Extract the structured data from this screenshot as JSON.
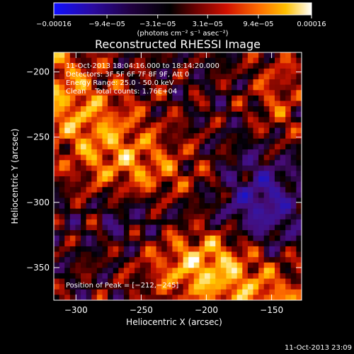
{
  "chart_data": {
    "type": "heatmap",
    "title": "Reconstructed RHESSI Image",
    "xlabel": "Heliocentric X (arcsec)",
    "ylabel": "Heliocentric Y (arcsec)",
    "xlim": [
      -317,
      -127
    ],
    "ylim": [
      -375,
      -185
    ],
    "x_ticks": [
      -300,
      -250,
      -200,
      -150
    ],
    "x_tick_labels": [
      "−300",
      "−250",
      "−200",
      "−150"
    ],
    "y_ticks": [
      -350,
      -300,
      -250,
      -200
    ],
    "y_tick_labels": [
      "−350",
      "−300",
      "−250",
      "−200"
    ],
    "colorbar": {
      "min": -0.00016,
      "max": 0.00016,
      "ticks": [
        -0.00016,
        -9.4e-05,
        -3.1e-05,
        3.1e-05,
        9.4e-05,
        0.00016
      ],
      "tick_labels": [
        "−0.00016",
        "−9.4e−05",
        "−3.1e−05",
        "3.1e−05",
        "9.4e−05",
        "0.00016"
      ],
      "units_label": "(photons cm⁻² s⁻¹ asec⁻²)"
    },
    "info_lines": [
      "11-Oct-2013 18:04:16.000 to 18:14:20.000",
      "Detectors: 3F 5F 6F 7F 8F 9F, Att 0",
      "Energy Range: 25.0 - 50.0 keV",
      "Clean    Total counts: 1.76E+04"
    ],
    "peak_label": "Position of Peak = [−212,−245]",
    "peak": [
      -212,
      -245
    ],
    "timestamp": "11-Oct-2013 23:09",
    "colors": {
      "background": "#000000",
      "scale_low": "#0000ff",
      "scale_mid": "#000000",
      "scale_high": "#ffffff"
    }
  }
}
